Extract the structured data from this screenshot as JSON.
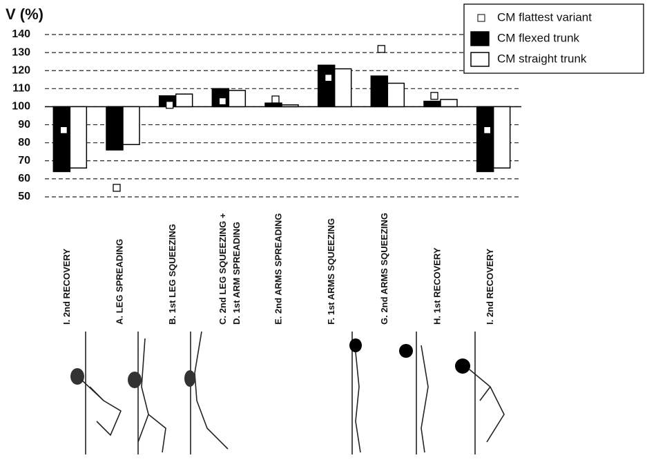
{
  "chart_data": {
    "type": "bar",
    "y_label": "V (%)",
    "categories": [
      [
        "I.  2nd RECOVERY"
      ],
      [
        "A.  LEG SPREADING"
      ],
      [
        "B.  1st LEG SQUEEZING"
      ],
      [
        "C.  2nd LEG SQUEEZING +",
        "D.  1st ARM SPREADING"
      ],
      [
        "E.  2nd ARMS SPREADING"
      ],
      [
        "F.  1st  ARMS SQUEEZING"
      ],
      [
        "G.  2nd ARMS SQUEEZING"
      ],
      [
        "H.  1st RECOVERY"
      ],
      [
        "I.  2nd RECOVERY"
      ]
    ],
    "baseline": 100,
    "series": [
      {
        "name": "CM flattest variant",
        "color": "#ffffff",
        "marker": "square",
        "values": [
          87,
          55,
          101,
          103,
          104,
          116,
          132,
          106,
          87
        ]
      },
      {
        "name": "CM flexed trunk",
        "color": "#000000",
        "values": [
          64,
          76,
          106,
          110,
          102,
          123,
          117,
          103,
          64
        ]
      },
      {
        "name": "CM straight trunk",
        "color": "#ffffff",
        "values": [
          66,
          79,
          107,
          109,
          101,
          121,
          113,
          104,
          66
        ]
      }
    ],
    "ylim": [
      50,
      140
    ],
    "yticks": [
      50,
      60,
      70,
      80,
      90,
      100,
      110,
      120,
      130,
      140
    ],
    "grid": true,
    "legend": "top-right"
  }
}
